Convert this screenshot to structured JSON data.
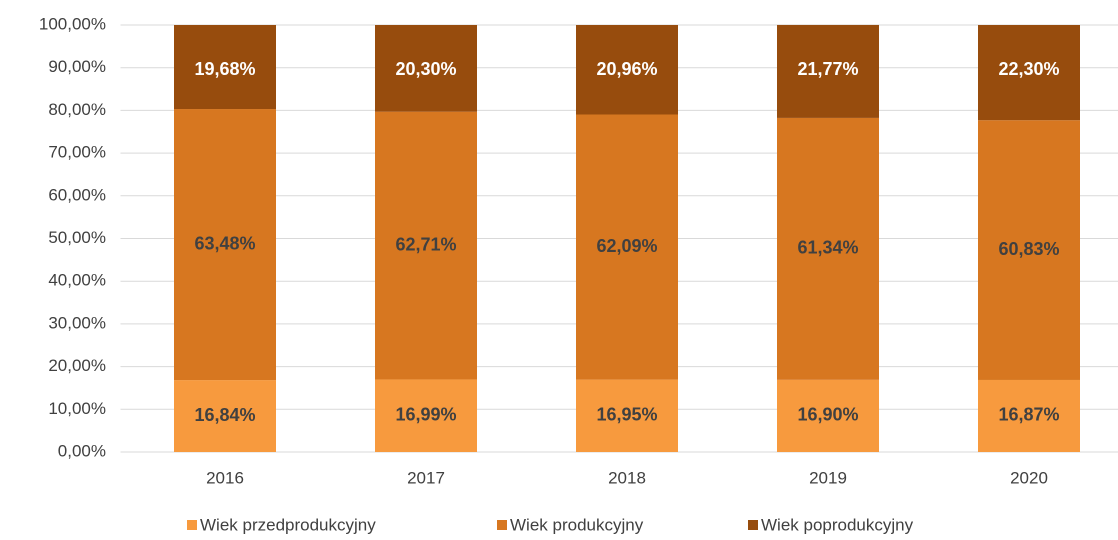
{
  "chart_data": {
    "type": "stacked_bar",
    "categories": [
      "2016",
      "2017",
      "2018",
      "2019",
      "2020"
    ],
    "series": [
      {
        "name": "Wiek przedprodukcyjny",
        "color": "#f79a3e",
        "label_color": "#404040",
        "values": [
          16.84,
          16.99,
          16.95,
          16.9,
          16.87
        ],
        "value_labels": [
          "16,84%",
          "16,99%",
          "16,95%",
          "16,90%",
          "16,87%"
        ]
      },
      {
        "name": "Wiek produkcyjny",
        "color": "#d77720",
        "label_color": "#404040",
        "values": [
          63.48,
          62.71,
          62.09,
          61.34,
          60.83
        ],
        "value_labels": [
          "63,48%",
          "62,71%",
          "62,09%",
          "61,34%",
          "60,83%"
        ]
      },
      {
        "name": "Wiek poprodukcyjny",
        "color": "#974c0d",
        "label_color": "#ffffff",
        "values": [
          19.68,
          20.3,
          20.96,
          21.77,
          22.3
        ],
        "value_labels": [
          "19,68%",
          "20,30%",
          "20,96%",
          "21,77%",
          "22,30%"
        ]
      }
    ],
    "ylim": [
      0,
      100
    ],
    "yticks": [
      {
        "value": 0,
        "label": "0,00%"
      },
      {
        "value": 10,
        "label": "10,00%"
      },
      {
        "value": 20,
        "label": "20,00%"
      },
      {
        "value": 30,
        "label": "30,00%"
      },
      {
        "value": 40,
        "label": "40,00%"
      },
      {
        "value": 50,
        "label": "50,00%"
      },
      {
        "value": 60,
        "label": "60,00%"
      },
      {
        "value": 70,
        "label": "70,00%"
      },
      {
        "value": 80,
        "label": "80,00%"
      },
      {
        "value": 90,
        "label": "90,00%"
      },
      {
        "value": 100,
        "label": "100,00%"
      }
    ],
    "grid": true,
    "legend": "bottom"
  }
}
